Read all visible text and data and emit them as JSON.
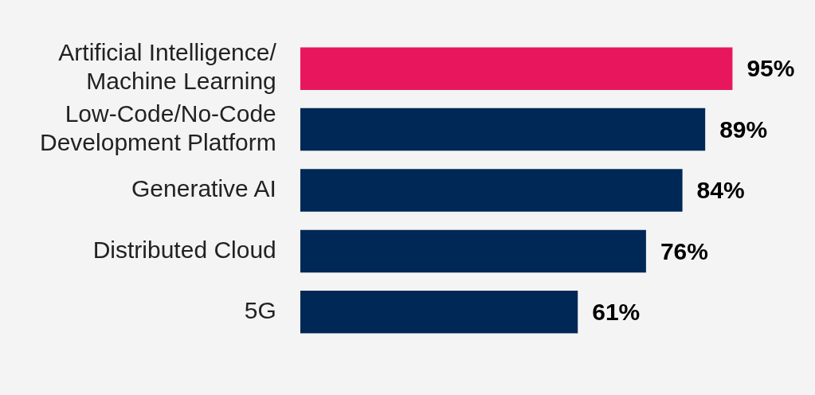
{
  "chart_data": {
    "type": "bar",
    "orientation": "horizontal",
    "categories": [
      "Artificial Intelligence/ Machine Learning",
      "Low-Code/No-Code Development Platform",
      "Generative AI",
      "Distributed Cloud",
      "5G"
    ],
    "values": [
      95,
      89,
      84,
      76,
      61
    ],
    "colors": [
      "#e8175d",
      "#002856",
      "#002856",
      "#002856",
      "#002856"
    ],
    "data_labels": true,
    "value_labels": [
      "95%",
      "89%",
      "84%",
      "76%",
      "61%"
    ],
    "tick_labels": "y"
  }
}
